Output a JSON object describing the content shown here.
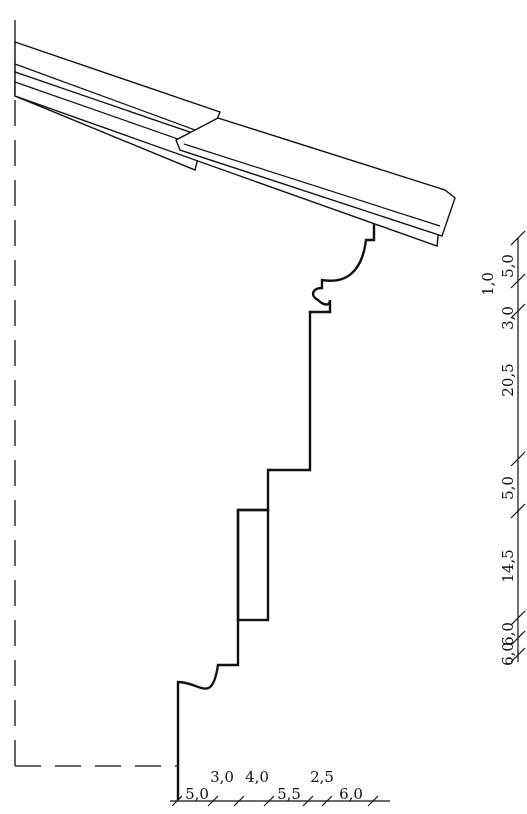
{
  "colors": {
    "ink": "#111111",
    "background": "#ffffff"
  },
  "dimensions": {
    "vertical": [
      "5,0",
      "1,0",
      "3,0",
      "20,5",
      "5,0",
      "14,5",
      "6,0",
      "6,0"
    ],
    "horizontal_bottom": [
      "5,0",
      "5,5",
      "6,0"
    ],
    "horizontal_top": [
      "3,0",
      "4,0",
      "2,5"
    ]
  }
}
